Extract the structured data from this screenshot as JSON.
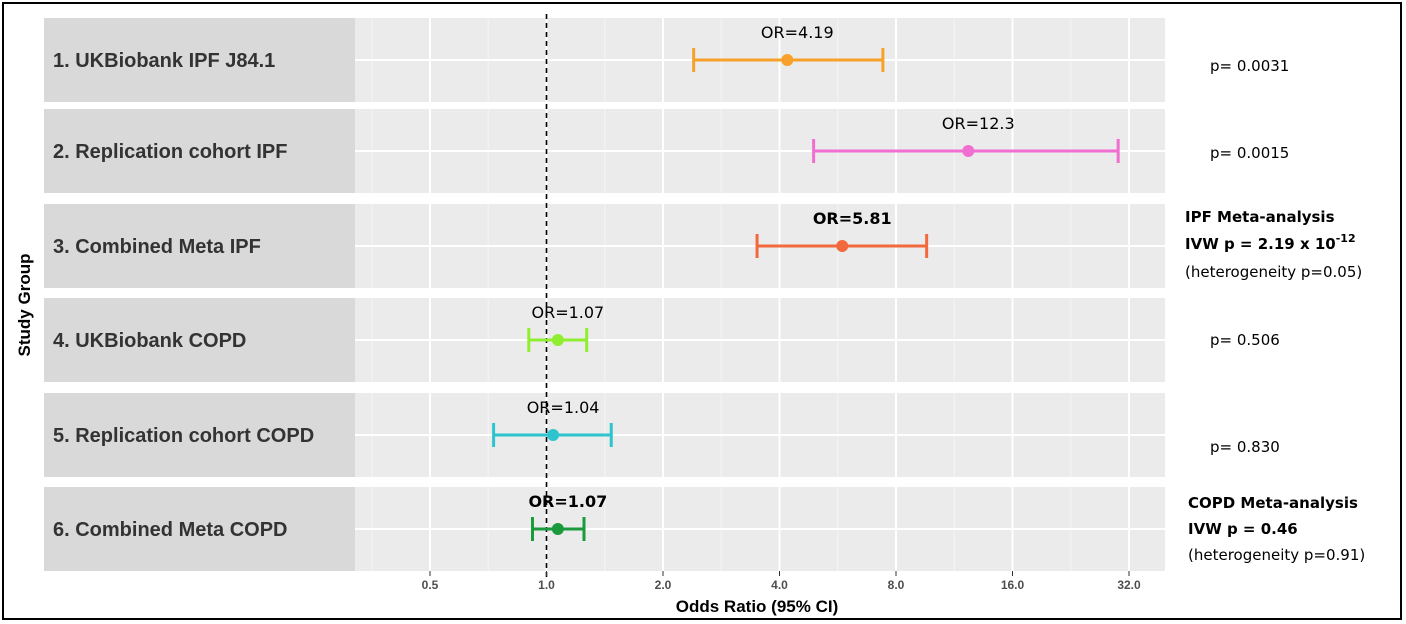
{
  "chart_data": {
    "type": "forest",
    "xlabel": "Odds Ratio (95% CI)",
    "ylabel": "Study Group",
    "x_scale": "log2",
    "xlim": [
      0.35,
      46
    ],
    "x_ticks": [
      0.5,
      1.0,
      2.0,
      4.0,
      8.0,
      16.0,
      32.0
    ],
    "x_tick_labels": [
      "0.5",
      "1.0",
      "2.0",
      "4.0",
      "8.0",
      "16.0",
      "32.0"
    ],
    "reference_line": 1.0,
    "rows": [
      {
        "label": "1. UKBiobank IPF J84.1",
        "or": 4.19,
        "ci_low": 2.4,
        "ci_high": 7.4,
        "or_text": "OR=4.19",
        "bold": false,
        "color": "#F7A12B"
      },
      {
        "label": "2. Replication cohort IPF",
        "or": 12.3,
        "ci_low": 4.9,
        "ci_high": 30.0,
        "or_text": "OR=12.3",
        "bold": false,
        "color": "#F06FD0"
      },
      {
        "label": "3. Combined Meta IPF",
        "or": 5.81,
        "ci_low": 3.5,
        "ci_high": 9.6,
        "or_text": "OR=5.81",
        "bold": true,
        "color": "#F2693E"
      },
      {
        "label": "4. UKBiobank COPD",
        "or": 1.07,
        "ci_low": 0.9,
        "ci_high": 1.27,
        "or_text": "OR=1.07",
        "bold": false,
        "color": "#90EE30"
      },
      {
        "label": "5. Replication cohort COPD",
        "or": 1.04,
        "ci_low": 0.73,
        "ci_high": 1.47,
        "or_text": "OR=1.04",
        "bold": false,
        "color": "#2EC4CF"
      },
      {
        "label": "6. Combined Meta COPD",
        "or": 1.07,
        "ci_low": 0.92,
        "ci_high": 1.25,
        "or_text": "OR=1.07",
        "bold": true,
        "color": "#1A9A3C"
      }
    ]
  },
  "annotations": {
    "p1": "p= 0.0031",
    "p2": "p= 0.0015",
    "ipf_meta_title": "IPF Meta-analysis",
    "ipf_meta_ivw": "IVW p = 2.19 x 10",
    "ipf_meta_exp": "-12",
    "ipf_meta_het": "(heterogeneity p=0.05)",
    "p4": "p= 0.506",
    "p5": "p= 0.830",
    "copd_meta_title": "COPD Meta-analysis",
    "copd_meta_ivw": "IVW p = 0.46",
    "copd_meta_het": "(heterogeneity p=0.91)"
  }
}
